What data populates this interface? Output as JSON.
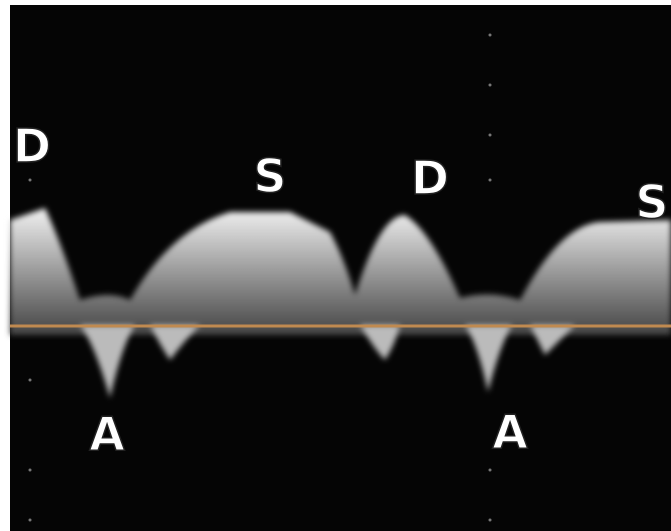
{
  "labels": [
    "D",
    "S",
    "D",
    "S",
    "A",
    "A"
  ]
}
